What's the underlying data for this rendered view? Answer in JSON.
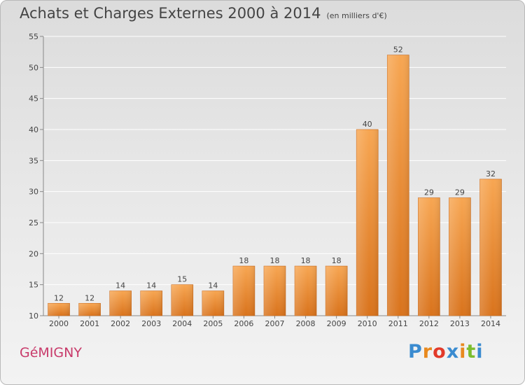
{
  "header": {
    "title": "Achats et Charges Externes 2000 à 2014",
    "unit": "(en milliers d'€)"
  },
  "footer": {
    "commune": "GéMIGNY",
    "brand_letters": [
      "P",
      "r",
      "o",
      "x",
      "i",
      "t",
      "i"
    ],
    "brand_colors": [
      "#3a8bd0",
      "#e8891e",
      "#e23a2a",
      "#3a8bd0",
      "#e8891e",
      "#7bbd2e",
      "#3a8bd0"
    ]
  },
  "chart_data": {
    "type": "bar",
    "title": "Achats et Charges Externes 2000 à 2014",
    "subtitle": "(en milliers d'€)",
    "xlabel": "",
    "ylabel": "",
    "categories": [
      "2000",
      "2001",
      "2002",
      "2003",
      "2004",
      "2005",
      "2006",
      "2007",
      "2008",
      "2009",
      "2010",
      "2011",
      "2012",
      "2013",
      "2014"
    ],
    "values": [
      12,
      12,
      14,
      14,
      15,
      14,
      18,
      18,
      18,
      18,
      40,
      52,
      29,
      29,
      32
    ],
    "data_labels": [
      "12",
      "12",
      "14",
      "14",
      "15",
      "14",
      "18",
      "18",
      "18",
      "18",
      "40",
      "52",
      "29",
      "29",
      "32"
    ],
    "ylim": [
      10,
      55
    ],
    "yticks": [
      10,
      15,
      20,
      25,
      30,
      35,
      40,
      45,
      50,
      55
    ],
    "grid": true,
    "legend": "none",
    "bar_color": "#f0922e"
  }
}
